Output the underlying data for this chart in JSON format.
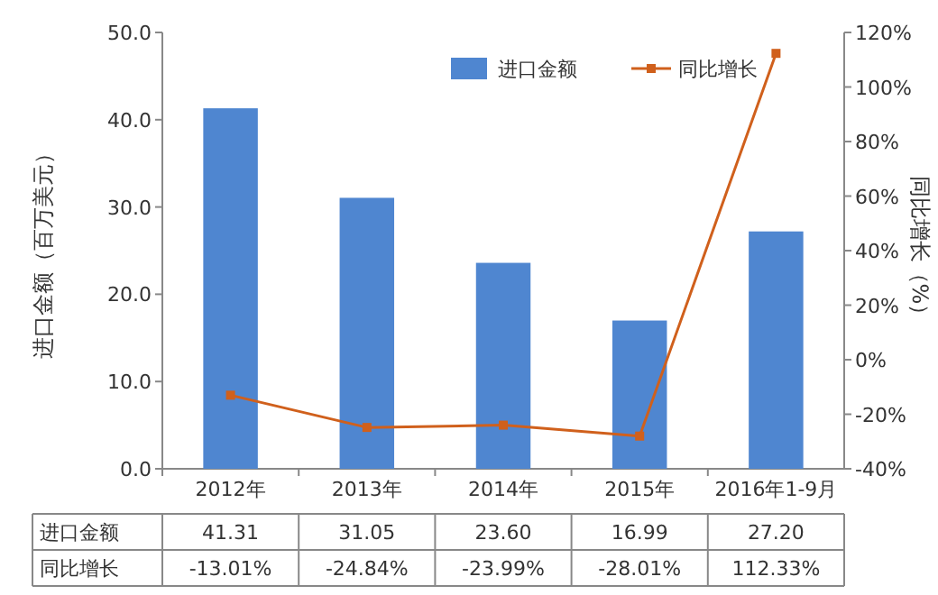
{
  "chart_data": {
    "type": "bar",
    "ylabel": "进口金额（百万美元）",
    "y2label": "同比增长（%）",
    "categories": [
      "2012年",
      "2013年",
      "2014年",
      "2015年",
      "2016年1-9月"
    ],
    "series": [
      {
        "name": "进口金额",
        "color": "#4f86d0",
        "values": [
          41.31,
          31.05,
          23.6,
          16.99,
          27.2
        ],
        "value_labels": [
          "41.31",
          "31.05",
          "23.60",
          "16.99",
          "27.20"
        ]
      },
      {
        "name": "同比增长",
        "type": "line",
        "axis": "y2",
        "color": "#d0601c",
        "marker": "square",
        "values": [
          -13.01,
          -24.84,
          -23.99,
          -28.01,
          112.33
        ],
        "value_labels": [
          "-13.01%",
          "-24.84%",
          "-23.99%",
          "-28.01%",
          "112.33%"
        ]
      }
    ],
    "ylim": [
      0,
      50
    ],
    "yticks": [
      {
        "value": 0,
        "label": "0.0"
      },
      {
        "value": 10,
        "label": "10.0"
      },
      {
        "value": 20,
        "label": "20.0"
      },
      {
        "value": 30,
        "label": "30.0"
      },
      {
        "value": 40,
        "label": "40.0"
      },
      {
        "value": 50,
        "label": "50.0"
      }
    ],
    "y2lim": [
      -40,
      120
    ],
    "y2ticks": [
      {
        "value": -40,
        "label": "-40%"
      },
      {
        "value": -20,
        "label": "-20%"
      },
      {
        "value": 0,
        "label": "0%"
      },
      {
        "value": 20,
        "label": "20%"
      },
      {
        "value": 40,
        "label": "40%"
      },
      {
        "value": 60,
        "label": "60%"
      },
      {
        "value": 80,
        "label": "80%"
      },
      {
        "value": 100,
        "label": "100%"
      },
      {
        "value": 120,
        "label": "120%"
      }
    ],
    "grid": false,
    "legend": "top right"
  }
}
